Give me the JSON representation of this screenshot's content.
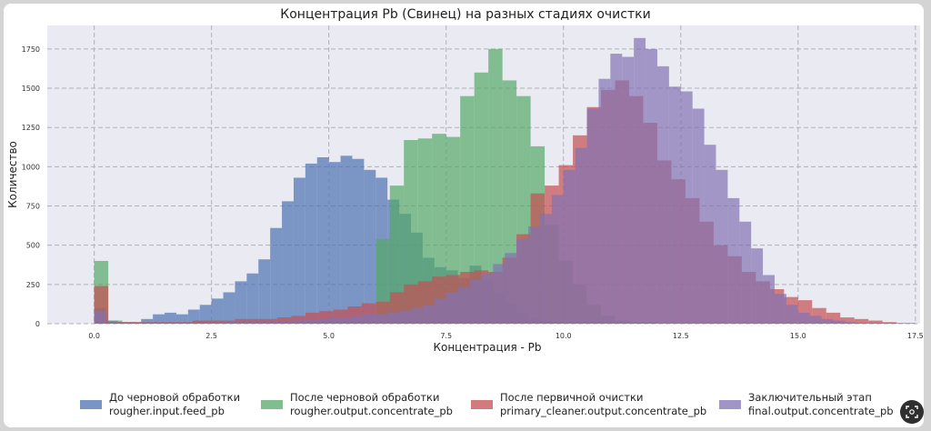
{
  "chart_data": {
    "type": "bar",
    "title": "Концентрация Pb (Свинец) на разных стадиях очистки",
    "xlabel": "Концентрация - Pb",
    "ylabel": "Количество",
    "xlim": [
      -1.0,
      17.6
    ],
    "ylim": [
      0,
      1900
    ],
    "xticks": [
      0.0,
      2.5,
      5.0,
      7.5,
      10.0,
      12.5,
      15.0,
      17.5
    ],
    "xtick_labels": [
      "0.0",
      "2.5",
      "5.0",
      "7.5",
      "10.0",
      "12.5",
      "15.0",
      "17.5"
    ],
    "yticks": [
      0,
      250,
      500,
      750,
      1000,
      1250,
      1500,
      1750
    ],
    "ytick_labels": [
      "0",
      "250",
      "500",
      "750",
      "1000",
      "1250",
      "1500",
      "1750"
    ],
    "grid": true,
    "legend_position": "bottom",
    "series": [
      {
        "name": "До черновой обработки\nrougher.input.feed_pb",
        "color": "#4c72b0",
        "bin_start": 0.0,
        "bin_width": 0.25,
        "values": [
          100,
          20,
          10,
          10,
          30,
          60,
          70,
          60,
          90,
          120,
          160,
          200,
          270,
          320,
          410,
          610,
          780,
          930,
          1020,
          1060,
          1030,
          1070,
          1050,
          980,
          930,
          790,
          700,
          580,
          420,
          360,
          340,
          290,
          370,
          280,
          200,
          130,
          70,
          30,
          20,
          10
        ]
      },
      {
        "name": "После черновой обработки\nrougher.output.concentrate_pb",
        "color": "#55a868",
        "bin_start": 0.0,
        "bin_width": 0.3,
        "values": [
          400,
          20,
          10,
          0,
          0,
          0,
          0,
          0,
          0,
          0,
          0,
          0,
          0,
          0,
          0,
          0,
          0,
          0,
          0,
          20,
          540,
          880,
          1170,
          1180,
          1210,
          1190,
          1450,
          1600,
          1750,
          1550,
          1450,
          1130,
          630,
          400,
          250,
          120,
          50,
          20,
          10,
          10
        ]
      },
      {
        "name": "После первичной очистки\nprimary_cleaner.output.concentrate_pb",
        "color": "#c44e52",
        "bin_start": 0.0,
        "bin_width": 0.3,
        "values": [
          240,
          10,
          10,
          10,
          10,
          10,
          10,
          20,
          20,
          20,
          30,
          30,
          30,
          40,
          50,
          70,
          80,
          90,
          110,
          130,
          140,
          200,
          250,
          270,
          300,
          310,
          330,
          340,
          330,
          420,
          570,
          830,
          880,
          1010,
          1200,
          1380,
          1490,
          1550,
          1450,
          1280,
          1040,
          920,
          800,
          650,
          500,
          430,
          330,
          270,
          220,
          170,
          150,
          100,
          70,
          40,
          30,
          20,
          10
        ]
      },
      {
        "name": "Заключительный этап\nfinal.output.concentrate_pb",
        "color": "#8172b2",
        "bin_start": 0.0,
        "bin_width": 0.25,
        "values": [
          80,
          10,
          5,
          5,
          5,
          5,
          5,
          5,
          5,
          5,
          5,
          10,
          10,
          10,
          10,
          10,
          15,
          20,
          25,
          30,
          35,
          40,
          50,
          60,
          60,
          70,
          80,
          100,
          120,
          160,
          200,
          230,
          280,
          320,
          380,
          450,
          540,
          620,
          700,
          820,
          980,
          1120,
          1370,
          1560,
          1720,
          1700,
          1820,
          1750,
          1640,
          1510,
          1480,
          1370,
          1140,
          980,
          800,
          650,
          480,
          310,
          190,
          120,
          70,
          50,
          30,
          20,
          10,
          5,
          5,
          5,
          5,
          5
        ]
      }
    ]
  }
}
